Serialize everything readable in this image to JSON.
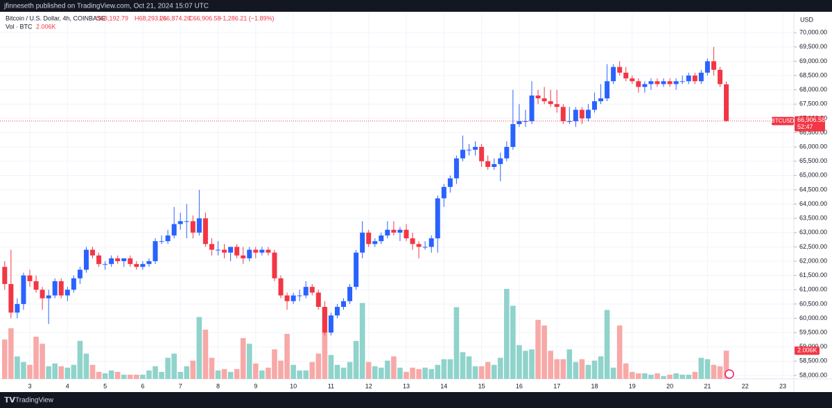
{
  "header": "jfinneseth published on TradingView.com, Oct 21, 2024 15:07 UTC",
  "footer": "TradingView",
  "chart_data": {
    "type": "candlestick",
    "legend": {
      "symbol": "Bitcoin / U.S. Dollar, 4h, COINBASE",
      "open": "O68,192.79",
      "high": "H68,293.26",
      "low": "L66,874.20",
      "close": "C66,906.58",
      "change": "−1,286.21 (−1.89%)",
      "volume_title": "Vol · BTC",
      "volume": "2.006K"
    },
    "currency": "USD",
    "last_price_label": {
      "symbol": "BTCUSD",
      "price": "66,906.58",
      "countdown": "52:47"
    },
    "last_volume_label": "2.006K",
    "up_color": "#2962ff",
    "down_color": "#f23645",
    "up_volume_color": "#8fd3cb",
    "down_volume_color": "#f7a9a7",
    "x_labels": [
      "3",
      "4",
      "5",
      "6",
      "7",
      "8",
      "9",
      "10",
      "11",
      "12",
      "13",
      "14",
      "15",
      "16",
      "17",
      "18",
      "19",
      "20",
      "21",
      "22",
      "23"
    ],
    "ylim": [
      57878,
      70732
    ],
    "yticks": [
      {
        "value": 58000,
        "label": "58,000.00"
      },
      {
        "value": 58500,
        "label": "58,500.00"
      },
      {
        "value": 59000,
        "label": "59,000.00"
      },
      {
        "value": 59500,
        "label": "59,500.00"
      },
      {
        "value": 60000,
        "label": "60,000.00"
      },
      {
        "value": 60500,
        "label": "60,500.00"
      },
      {
        "value": 61000,
        "label": "61,000.00"
      },
      {
        "value": 61500,
        "label": "61,500.00"
      },
      {
        "value": 62000,
        "label": "62,000.00"
      },
      {
        "value": 62500,
        "label": "62,500.00"
      },
      {
        "value": 63000,
        "label": "63,000.00"
      },
      {
        "value": 63500,
        "label": "63,500.00"
      },
      {
        "value": 64000,
        "label": "64,000.00"
      },
      {
        "value": 64500,
        "label": "64,500.00"
      },
      {
        "value": 65000,
        "label": "65,000.00"
      },
      {
        "value": 65500,
        "label": "65,500.00"
      },
      {
        "value": 66000,
        "label": "66,000.00"
      },
      {
        "value": 66500,
        "label": "66,500.00"
      },
      {
        "value": 67000,
        "label": "67,000.00"
      },
      {
        "value": 67500,
        "label": "67,500.00"
      },
      {
        "value": 68000,
        "label": "68,000.00"
      },
      {
        "value": 68500,
        "label": "68,500.00"
      },
      {
        "value": 69000,
        "label": "69,000.00"
      },
      {
        "value": 69500,
        "label": "69,500.00"
      },
      {
        "value": 70000,
        "label": "70,000.00"
      }
    ],
    "grid": true,
    "candles": [
      [
        61800,
        62000,
        61000,
        61200,
        2800
      ],
      [
        61200,
        62400,
        60000,
        60200,
        3600
      ],
      [
        60200,
        60700,
        60000,
        60500,
        1600
      ],
      [
        60500,
        61600,
        60300,
        61500,
        1200
      ],
      [
        61500,
        61700,
        61100,
        61300,
        1000
      ],
      [
        61300,
        61500,
        60900,
        61000,
        3000
      ],
      [
        61000,
        61100,
        60300,
        60700,
        2500
      ],
      [
        60700,
        61000,
        59800,
        60800,
        900
      ],
      [
        60800,
        61400,
        60700,
        61300,
        1100
      ],
      [
        61300,
        61400,
        60700,
        60800,
        900
      ],
      [
        60800,
        61100,
        60600,
        61000,
        800
      ],
      [
        61000,
        61500,
        60900,
        61400,
        1000
      ],
      [
        61400,
        61800,
        61200,
        61700,
        2700
      ],
      [
        61700,
        62500,
        61600,
        62400,
        1800
      ],
      [
        62400,
        62500,
        62100,
        62200,
        1000
      ],
      [
        62200,
        62300,
        61800,
        61900,
        500
      ],
      [
        61900,
        62000,
        61700,
        61900,
        400
      ],
      [
        61900,
        62200,
        61800,
        62100,
        600
      ],
      [
        62100,
        62200,
        61900,
        62000,
        500
      ],
      [
        62000,
        62100,
        61800,
        62100,
        300
      ],
      [
        62100,
        62200,
        61800,
        61900,
        300
      ],
      [
        61900,
        62000,
        61700,
        61800,
        300
      ],
      [
        61800,
        62000,
        61700,
        61900,
        300
      ],
      [
        61900,
        62100,
        61800,
        62000,
        600
      ],
      [
        62000,
        62800,
        61900,
        62700,
        900
      ],
      [
        62700,
        62900,
        62600,
        62700,
        500
      ],
      [
        62700,
        63100,
        62600,
        62900,
        1500
      ],
      [
        62900,
        63900,
        62800,
        63300,
        1800
      ],
      [
        63300,
        63700,
        63100,
        63400,
        500
      ],
      [
        63400,
        64000,
        62800,
        63400,
        900
      ],
      [
        63400,
        63600,
        62800,
        63000,
        1300
      ],
      [
        63000,
        64500,
        62900,
        63500,
        4400
      ],
      [
        63500,
        63700,
        62500,
        62600,
        3500
      ],
      [
        62600,
        62800,
        62200,
        62400,
        1500
      ],
      [
        62400,
        62700,
        62200,
        62400,
        600
      ],
      [
        62400,
        62600,
        62100,
        62300,
        700
      ],
      [
        62300,
        62500,
        62000,
        62500,
        500
      ],
      [
        62500,
        62600,
        62100,
        62200,
        700
      ],
      [
        62200,
        62500,
        61900,
        62100,
        2900
      ],
      [
        62100,
        62500,
        62000,
        62400,
        2500
      ],
      [
        62400,
        62500,
        62100,
        62300,
        1100
      ],
      [
        62300,
        62500,
        62200,
        62400,
        600
      ],
      [
        62400,
        62500,
        62200,
        62300,
        800
      ],
      [
        62300,
        62400,
        61300,
        61400,
        2100
      ],
      [
        61400,
        61500,
        60700,
        60800,
        1300
      ],
      [
        60800,
        60900,
        60300,
        60600,
        3200
      ],
      [
        60600,
        60900,
        60500,
        60800,
        1000
      ],
      [
        60800,
        61000,
        60600,
        60800,
        600
      ],
      [
        60800,
        61300,
        60700,
        61100,
        600
      ],
      [
        61100,
        61200,
        60800,
        60900,
        1200
      ],
      [
        60900,
        61000,
        60300,
        60400,
        1800
      ],
      [
        60400,
        60600,
        59400,
        59500,
        5100
      ],
      [
        59500,
        60200,
        59400,
        60100,
        1700
      ],
      [
        60100,
        60500,
        60000,
        60400,
        1000
      ],
      [
        60400,
        60700,
        60300,
        60600,
        800
      ],
      [
        60600,
        61200,
        60500,
        61100,
        1200
      ],
      [
        61100,
        62400,
        61000,
        62300,
        2700
      ],
      [
        62300,
        63400,
        62100,
        63000,
        5400
      ],
      [
        63000,
        63100,
        62500,
        62600,
        1200
      ],
      [
        62600,
        62800,
        62500,
        62700,
        900
      ],
      [
        62700,
        63000,
        62600,
        62900,
        800
      ],
      [
        62900,
        63400,
        62800,
        63100,
        1300
      ],
      [
        63100,
        63400,
        62900,
        63000,
        1600
      ],
      [
        63000,
        63200,
        62700,
        63100,
        800
      ],
      [
        63100,
        63300,
        62700,
        62800,
        500
      ],
      [
        62800,
        63000,
        62400,
        62600,
        800
      ],
      [
        62600,
        62700,
        62100,
        62500,
        700
      ],
      [
        62500,
        62700,
        62400,
        62500,
        800
      ],
      [
        62500,
        62900,
        62300,
        62800,
        700
      ],
      [
        62800,
        64300,
        62300,
        64200,
        1000
      ],
      [
        64200,
        64700,
        63900,
        64600,
        1400
      ],
      [
        64600,
        65000,
        64400,
        64900,
        1400
      ],
      [
        64900,
        65700,
        64700,
        65600,
        5100
      ],
      [
        65600,
        66400,
        65500,
        65900,
        1900
      ],
      [
        65900,
        66100,
        65700,
        65900,
        1600
      ],
      [
        65900,
        66200,
        65700,
        66000,
        900
      ],
      [
        66000,
        66100,
        65300,
        65500,
        900
      ],
      [
        65500,
        65700,
        65200,
        65300,
        1200
      ],
      [
        65300,
        65600,
        65200,
        65400,
        1000
      ],
      [
        65400,
        65800,
        64800,
        65600,
        1500
      ],
      [
        65600,
        66200,
        65500,
        66000,
        6400
      ],
      [
        66000,
        68000,
        65900,
        66800,
        5200
      ],
      [
        66800,
        67500,
        66700,
        66900,
        2400
      ],
      [
        66900,
        67300,
        66700,
        66900,
        2000
      ],
      [
        66900,
        68300,
        66800,
        67800,
        2100
      ],
      [
        67800,
        68000,
        67500,
        67700,
        4200
      ],
      [
        67700,
        68100,
        67500,
        67600,
        3800
      ],
      [
        67600,
        68000,
        67400,
        67500,
        2000
      ],
      [
        67500,
        68000,
        67200,
        67400,
        1400
      ],
      [
        67400,
        67500,
        66800,
        66900,
        1400
      ],
      [
        66900,
        67400,
        66800,
        66900,
        2100
      ],
      [
        66900,
        67400,
        66700,
        67300,
        1200
      ],
      [
        67300,
        67400,
        66800,
        67000,
        1400
      ],
      [
        67000,
        67500,
        66900,
        67300,
        1000
      ],
      [
        67300,
        67900,
        67200,
        67600,
        1300
      ],
      [
        67600,
        68200,
        67500,
        67700,
        1600
      ],
      [
        67700,
        68900,
        67600,
        68300,
        4900
      ],
      [
        68300,
        68900,
        68200,
        68800,
        800
      ],
      [
        68800,
        69000,
        68500,
        68600,
        3800
      ],
      [
        68600,
        68800,
        68300,
        68400,
        1100
      ],
      [
        68400,
        68500,
        68200,
        68300,
        500
      ],
      [
        68300,
        68400,
        67900,
        68100,
        400
      ],
      [
        68100,
        68300,
        67900,
        68200,
        400
      ],
      [
        68200,
        68400,
        68000,
        68300,
        300
      ],
      [
        68300,
        68400,
        68100,
        68200,
        400
      ],
      [
        68200,
        68400,
        68100,
        68300,
        200
      ],
      [
        68300,
        68400,
        68100,
        68200,
        300
      ],
      [
        68200,
        68400,
        68000,
        68300,
        400
      ],
      [
        68300,
        68500,
        68200,
        68300,
        300
      ],
      [
        68300,
        68600,
        68200,
        68500,
        300
      ],
      [
        68500,
        68600,
        68200,
        68300,
        500
      ],
      [
        68300,
        68700,
        68200,
        68600,
        1500
      ],
      [
        68600,
        69100,
        68500,
        69000,
        1400
      ],
      [
        69000,
        69500,
        68500,
        68700,
        1000
      ],
      [
        68700,
        68800,
        68100,
        68200,
        900
      ],
      [
        68192.79,
        68293.26,
        66874.2,
        66906.58,
        2006
      ]
    ]
  }
}
